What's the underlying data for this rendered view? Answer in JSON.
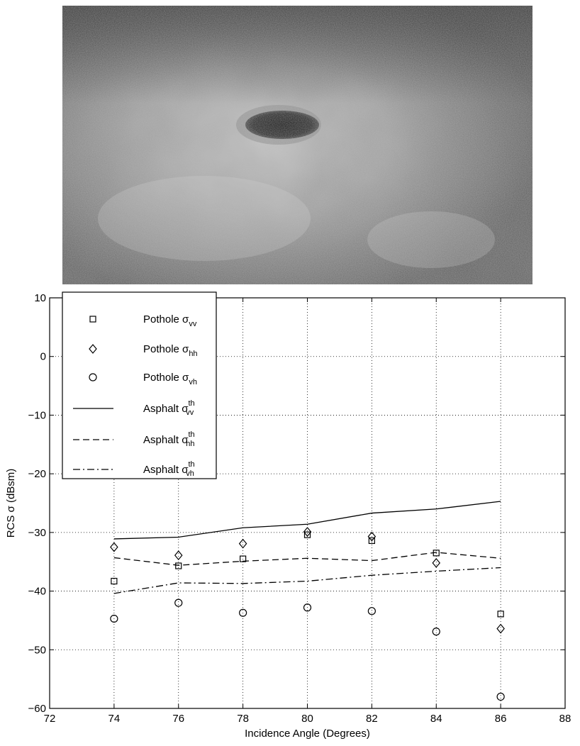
{
  "photo": {
    "subject": "pothole-in-asphalt"
  },
  "chart_data": {
    "type": "scatter",
    "xlabel": "Incidence Angle (Degrees)",
    "ylabel": "RCS σ (dBsm)",
    "xlim": [
      72,
      88
    ],
    "ylim": [
      -60,
      10
    ],
    "xticks": [
      72,
      74,
      76,
      78,
      80,
      82,
      84,
      86,
      88
    ],
    "yticks": [
      10,
      0,
      -10,
      -20,
      -30,
      -40,
      -50,
      -60
    ],
    "xtick_labels": [
      "72",
      "74",
      "76",
      "78",
      "80",
      "82",
      "84",
      "86",
      "88"
    ],
    "ytick_labels": [
      "10",
      "0",
      "−10",
      "−20",
      "−30",
      "−40",
      "−50",
      "−60"
    ],
    "grid": true,
    "legend_position": "top-left",
    "series": [
      {
        "name_main": "Pothole σ",
        "name_sub": "vv",
        "name_sup": "",
        "kind": "markers",
        "marker": "square",
        "x": [
          74,
          76,
          78,
          80,
          82,
          84,
          86
        ],
        "y": [
          -38.3,
          -35.7,
          -34.5,
          -30.4,
          -31.4,
          -33.5,
          -43.9
        ]
      },
      {
        "name_main": "Pothole σ",
        "name_sub": "hh",
        "name_sup": "",
        "kind": "markers",
        "marker": "diamond",
        "x": [
          74,
          76,
          78,
          80,
          82,
          84,
          86
        ],
        "y": [
          -32.5,
          -33.9,
          -31.9,
          -29.9,
          -30.7,
          -35.2,
          -46.4
        ]
      },
      {
        "name_main": "Pothole σ",
        "name_sub": "vh",
        "name_sup": "",
        "kind": "markers",
        "marker": "circle",
        "x": [
          74,
          76,
          78,
          80,
          82,
          84,
          86
        ],
        "y": [
          -44.7,
          -42.0,
          -43.7,
          -42.8,
          -43.4,
          -46.9,
          -58.0
        ]
      },
      {
        "name_main": "Asphalt σ",
        "name_sub": "vv",
        "name_sup": "th",
        "kind": "line",
        "dash": "solid",
        "x": [
          74,
          76,
          78,
          80,
          82,
          84,
          86
        ],
        "y": [
          -31.1,
          -30.8,
          -29.2,
          -28.6,
          -26.7,
          -26.0,
          -24.7
        ]
      },
      {
        "name_main": "Asphalt σ",
        "name_sub": "hh",
        "name_sup": "th",
        "kind": "line",
        "dash": "dashed",
        "x": [
          74,
          76,
          78,
          80,
          82,
          84,
          86
        ],
        "y": [
          -34.3,
          -35.6,
          -34.9,
          -34.4,
          -34.8,
          -33.4,
          -34.4
        ]
      },
      {
        "name_main": "Asphalt σ",
        "name_sub": "vh",
        "name_sup": "th",
        "kind": "line",
        "dash": "dashdot",
        "x": [
          74,
          76,
          78,
          80,
          82,
          84,
          86
        ],
        "y": [
          -40.4,
          -38.6,
          -38.7,
          -38.3,
          -37.3,
          -36.6,
          -36.0
        ]
      }
    ]
  }
}
